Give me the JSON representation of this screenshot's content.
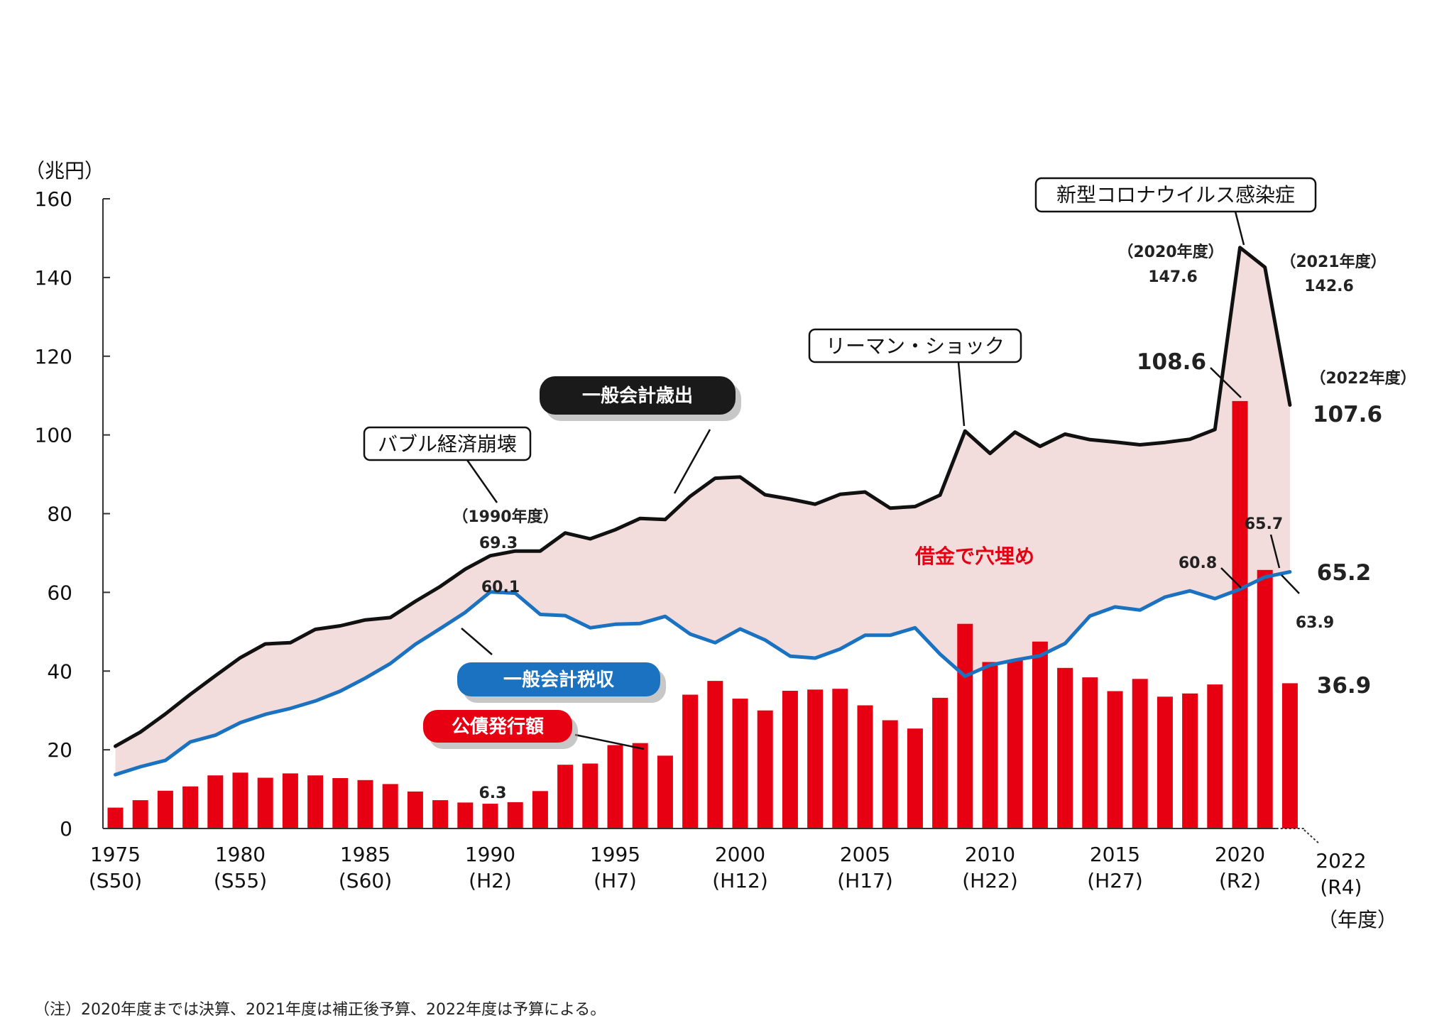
{
  "chart_data": {
    "type": "bar",
    "unit_label": "（兆円）",
    "xlabel": "（年度）",
    "ylim": [
      0,
      160
    ],
    "yticks": [
      0,
      20,
      40,
      60,
      80,
      100,
      120,
      140,
      160
    ],
    "x": [
      1975,
      1976,
      1977,
      1978,
      1979,
      1980,
      1981,
      1982,
      1983,
      1984,
      1985,
      1986,
      1987,
      1988,
      1989,
      1990,
      1991,
      1992,
      1993,
      1994,
      1995,
      1996,
      1997,
      1998,
      1999,
      2000,
      2001,
      2002,
      2003,
      2004,
      2005,
      2006,
      2007,
      2008,
      2009,
      2010,
      2011,
      2012,
      2013,
      2014,
      2015,
      2016,
      2017,
      2018,
      2019,
      2020,
      2021,
      2022
    ],
    "xticks": [
      {
        "year": 1975,
        "label": "1975",
        "era": "(S50)"
      },
      {
        "year": 1980,
        "label": "1980",
        "era": "(S55)"
      },
      {
        "year": 1985,
        "label": "1985",
        "era": "(S60)"
      },
      {
        "year": 1990,
        "label": "1990",
        "era": "(H2)"
      },
      {
        "year": 1995,
        "label": "1995",
        "era": "(H7)"
      },
      {
        "year": 2000,
        "label": "2000",
        "era": "(H12)"
      },
      {
        "year": 2005,
        "label": "2005",
        "era": "(H17)"
      },
      {
        "year": 2010,
        "label": "2010",
        "era": "(H22)"
      },
      {
        "year": 2015,
        "label": "2015",
        "era": "(H27)"
      },
      {
        "year": 2020,
        "label": "2020",
        "era": "(R2)"
      },
      {
        "year": 2022,
        "label": "2022",
        "era": "(R4)"
      }
    ],
    "series": [
      {
        "name": "一般会計歳出",
        "type": "line",
        "color": "#111111",
        "values": [
          20.9,
          24.5,
          29.1,
          34.1,
          38.8,
          43.4,
          46.9,
          47.2,
          50.6,
          51.5,
          53.0,
          53.6,
          57.7,
          61.5,
          65.9,
          69.3,
          70.5,
          70.5,
          75.1,
          73.6,
          75.9,
          78.8,
          78.5,
          84.4,
          89.0,
          89.3,
          84.8,
          83.7,
          82.4,
          84.9,
          85.5,
          81.4,
          81.8,
          84.7,
          101.0,
          95.3,
          100.7,
          97.1,
          100.2,
          98.8,
          98.2,
          97.5,
          98.1,
          98.9,
          101.4,
          147.6,
          142.6,
          107.6
        ]
      },
      {
        "name": "一般会計税収",
        "type": "line",
        "color": "#1a72c0",
        "values": [
          13.7,
          15.7,
          17.3,
          22.0,
          23.7,
          26.9,
          29.0,
          30.5,
          32.4,
          34.9,
          38.2,
          41.9,
          46.8,
          50.8,
          54.9,
          60.1,
          59.8,
          54.4,
          54.1,
          51.0,
          51.9,
          52.1,
          53.9,
          49.4,
          47.2,
          50.7,
          47.9,
          43.8,
          43.3,
          45.6,
          49.1,
          49.1,
          51.0,
          44.3,
          38.7,
          41.5,
          42.8,
          43.9,
          47.0,
          54.0,
          56.3,
          55.5,
          58.8,
          60.4,
          58.4,
          60.8,
          63.9,
          65.2
        ]
      },
      {
        "name": "公債発行額",
        "type": "bar",
        "color": "#e60012",
        "values": [
          5.3,
          7.2,
          9.6,
          10.7,
          13.5,
          14.2,
          12.9,
          14.0,
          13.5,
          12.8,
          12.3,
          11.3,
          9.4,
          7.2,
          6.6,
          6.3,
          6.7,
          9.5,
          16.2,
          16.5,
          21.2,
          21.7,
          18.5,
          34.0,
          37.5,
          33.0,
          30.0,
          35.0,
          35.3,
          35.5,
          31.3,
          27.5,
          25.4,
          33.2,
          52.0,
          42.3,
          42.8,
          47.5,
          40.8,
          38.4,
          34.9,
          38.0,
          33.5,
          34.3,
          36.6,
          108.6,
          65.7,
          36.9
        ]
      }
    ],
    "fill_between": {
      "label": "借金で穴埋め",
      "color": "#f3dcdc"
    },
    "annotations": {
      "y1990_year": "（1990年度）",
      "y1990_exp": "69.3",
      "y1990_tax": "60.1",
      "y1990_bond": "6.3",
      "y2020_year": "（2020年度）",
      "y2020_exp": "147.6",
      "y2020_bond": "108.6",
      "y2020_tax": "60.8",
      "y2021_year": "（2021年度）",
      "y2021_exp": "142.6",
      "y2021_bond": "65.7",
      "y2021_tax": "63.9",
      "y2022_year": "（2022年度）",
      "y2022_exp": "107.6",
      "y2022_tax": "65.2",
      "y2022_bond": "36.9"
    },
    "callouts": {
      "bubble": "バブル経済崩壊",
      "lehman": "リーマン・ショック",
      "covid": "新型コロナウイルス感染症"
    },
    "legend_pills": {
      "expenditure": "一般会計歳出",
      "tax": "一般会計税収",
      "bond": "公債発行額"
    }
  },
  "note": "（注）2020年度までは決算、2021年度は補正後予算、2022年度は予算による。"
}
